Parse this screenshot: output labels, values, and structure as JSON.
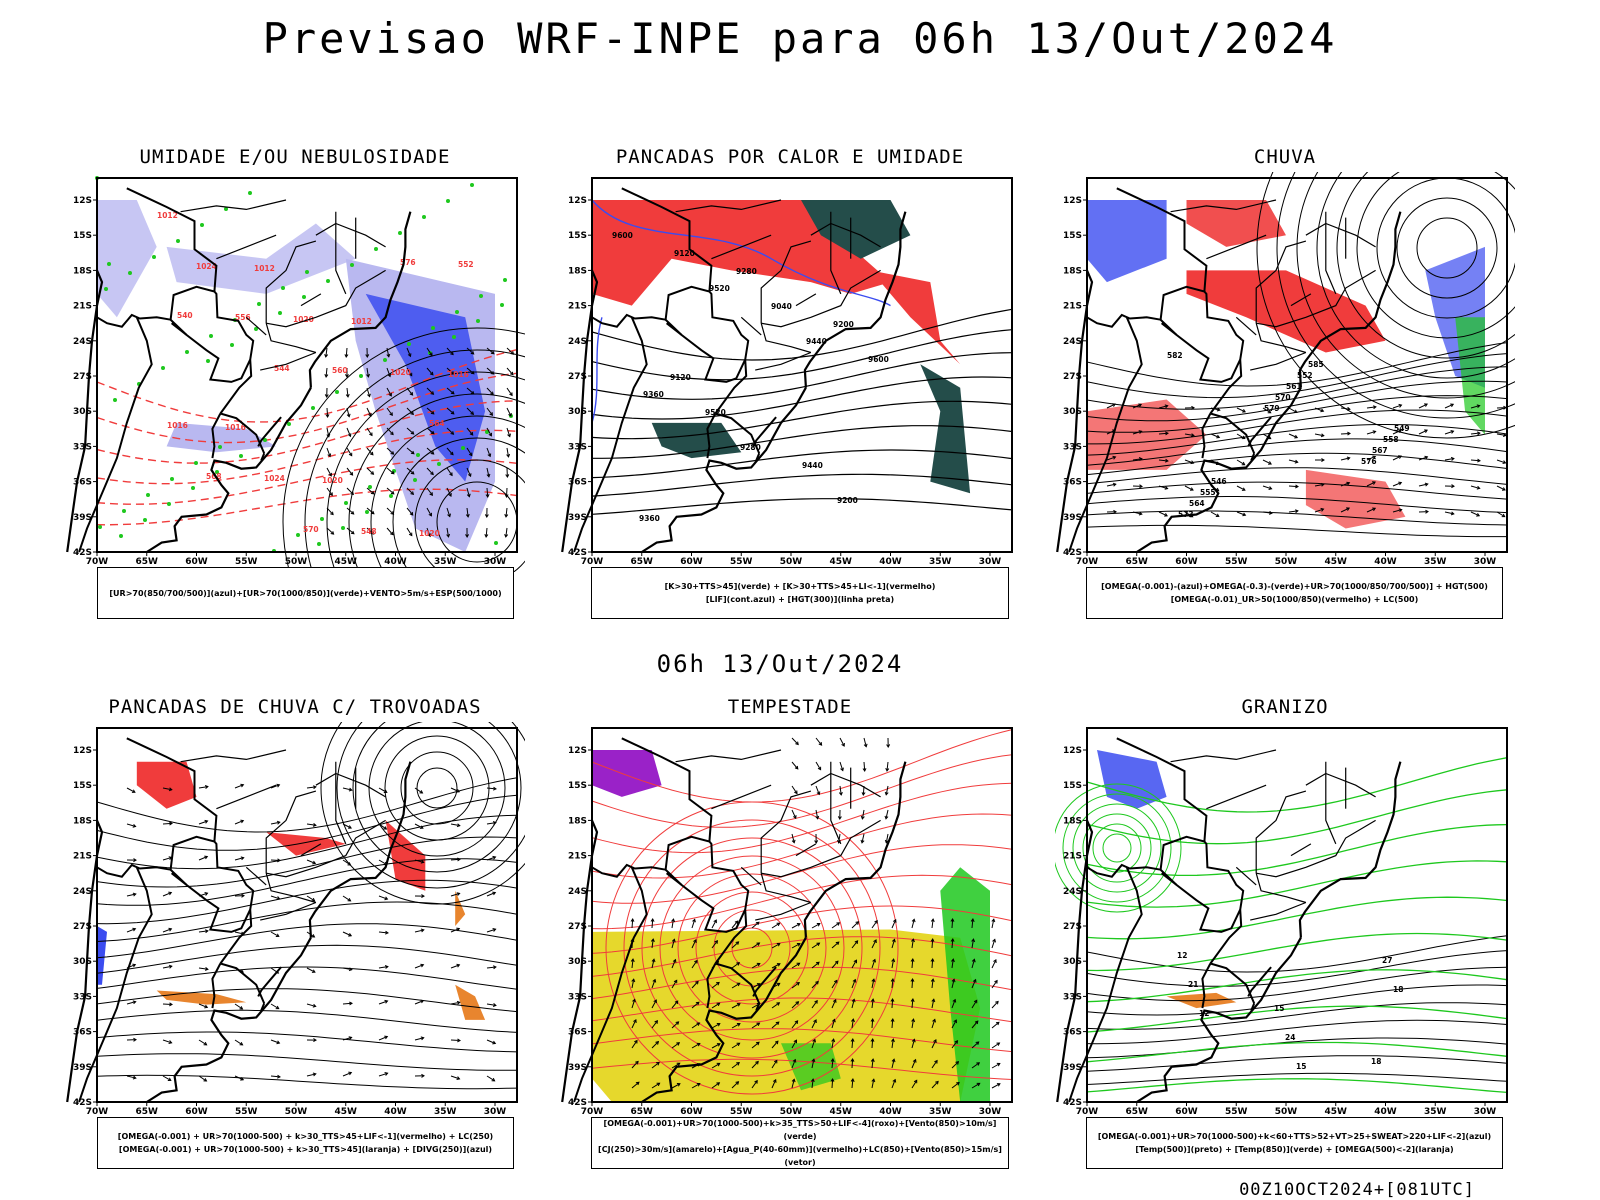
{
  "title": "Previsao WRF-INPE  para 06h 13/Out/2024",
  "mid_date": "06h 13/Out/2024",
  "footer": "00Z10OCT2024+[081UTC]",
  "axes": {
    "lat_ticks": [
      "12S",
      "15S",
      "18S",
      "21S",
      "24S",
      "27S",
      "30S",
      "33S",
      "36S",
      "39S",
      "42S"
    ],
    "lon_ticks": [
      "70W",
      "65W",
      "60W",
      "55W",
      "50W",
      "45W",
      "40W",
      "35W",
      "30W"
    ]
  },
  "panels": [
    {
      "title": "UMIDADE E/OU NEBULOSIDADE",
      "legend": [
        "[UR>70(850/700/500)](azul)+[UR>70(1000/850)](verde)+VENTO>5m/s+ESP(500/1000)"
      ]
    },
    {
      "title": "PANCADAS POR CALOR E UMIDADE",
      "legend": [
        "[K>30+TTS>45](verde) + [K>30+TTS>45+LI<-1](vermelho)",
        "[LIF](cont.azul) + [HGT(300)](linha preta)"
      ]
    },
    {
      "title": "CHUVA",
      "legend": [
        "[OMEGA(-0.001)-(azul)+OMEGA(-0.3)-(verde)+UR>70(1000/850/700/500)] + HGT(500)",
        "[OMEGA(-0.01)_UR>50(1000/850)(vermelho) + LC(500)"
      ]
    },
    {
      "title": "PANCADAS DE CHUVA C/ TROVOADAS",
      "legend": [
        "[OMEGA(-0.001) + UR>70(1000-500) + k>30_TTS>45+LIF<-1](vermelho) + LC(250)",
        "[OMEGA(-0.001) + UR>70(1000-500) + k>30_TTS>45](laranja) + [DIVG(250)](azul)"
      ]
    },
    {
      "title": "TEMPESTADE",
      "legend": [
        "[OMEGA(-0.001)+UR>70(1000-500)+k>35_TTS>50+LIF<-4](roxo)+[Vento(850)>10m/s](verde)",
        "[CJ(250)>30m/s](amarelo)+[Agua_P(40-60mm)](vermelho)+LC(850)+[Vento(850)>15m/s](vetor)"
      ]
    },
    {
      "title": "GRANIZO",
      "legend": [
        "[OMEGA(-0.001)+UR>70(1000-500)+k<60+TTS>52+VT>25+SWEAT>220+LIF<-2](azul)",
        "[Temp(500)](preto) + [Temp(850)](verde) + [OMEGA(500)<-2](laranja)"
      ]
    }
  ],
  "contour_labels": {
    "p1": [
      "1012",
      "1012",
      "1012",
      "1016",
      "1016",
      "1020",
      "1020",
      "1024",
      "1020",
      "1020",
      "1016",
      "1024",
      "548",
      "552",
      "556",
      "560",
      "564",
      "568",
      "570",
      "576",
      "540",
      "544"
    ],
    "p2": [
      "9600",
      "9520",
      "9440",
      "9360",
      "9280",
      "9200",
      "9120",
      "9040",
      "9600",
      "9520",
      "9440",
      "9360",
      "9280",
      "9200",
      "9120"
    ],
    "p3": [
      "582",
      "579",
      "576",
      "573",
      "570",
      "567",
      "564",
      "561",
      "558",
      "555",
      "552",
      "549",
      "546",
      "585"
    ],
    "p6": [
      "12",
      "15",
      "18",
      "21",
      "24",
      "27",
      "12",
      "15",
      "18"
    ]
  },
  "colors": {
    "blue": "#3b4cf0",
    "light_blue": "#b9b8f0",
    "green": "#1ec81e",
    "red": "#f03c3c",
    "dark_teal": "#244d4a",
    "yellow": "#e6d82c",
    "purple": "#9a22c8",
    "orange": "#e8852e"
  }
}
